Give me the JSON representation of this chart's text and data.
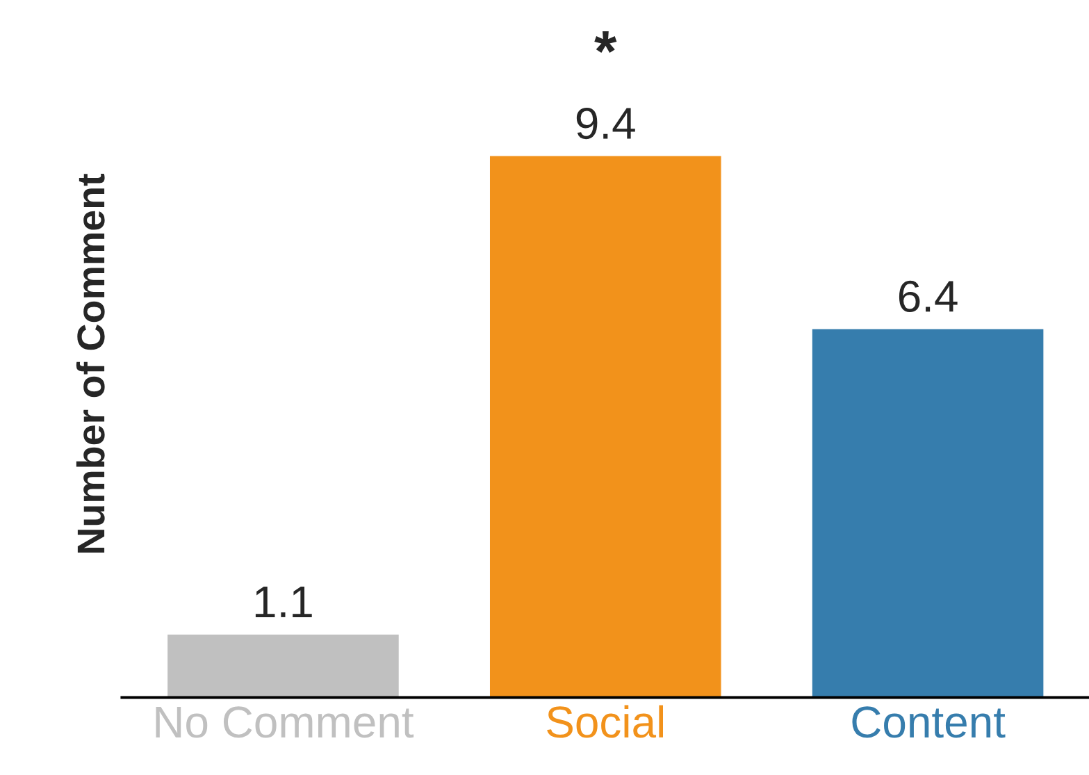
{
  "chart_data": {
    "type": "bar",
    "ylabel": "Number of Comment",
    "categories": [
      "No Comment",
      "Social",
      "Content"
    ],
    "values": [
      1.1,
      9.4,
      6.4
    ],
    "colors": [
      "#c0c0c0",
      "#f2921b",
      "#367dad"
    ],
    "data_labels": true,
    "annotations": [
      {
        "text": "*",
        "x": "Social",
        "y": 9.4
      }
    ]
  }
}
